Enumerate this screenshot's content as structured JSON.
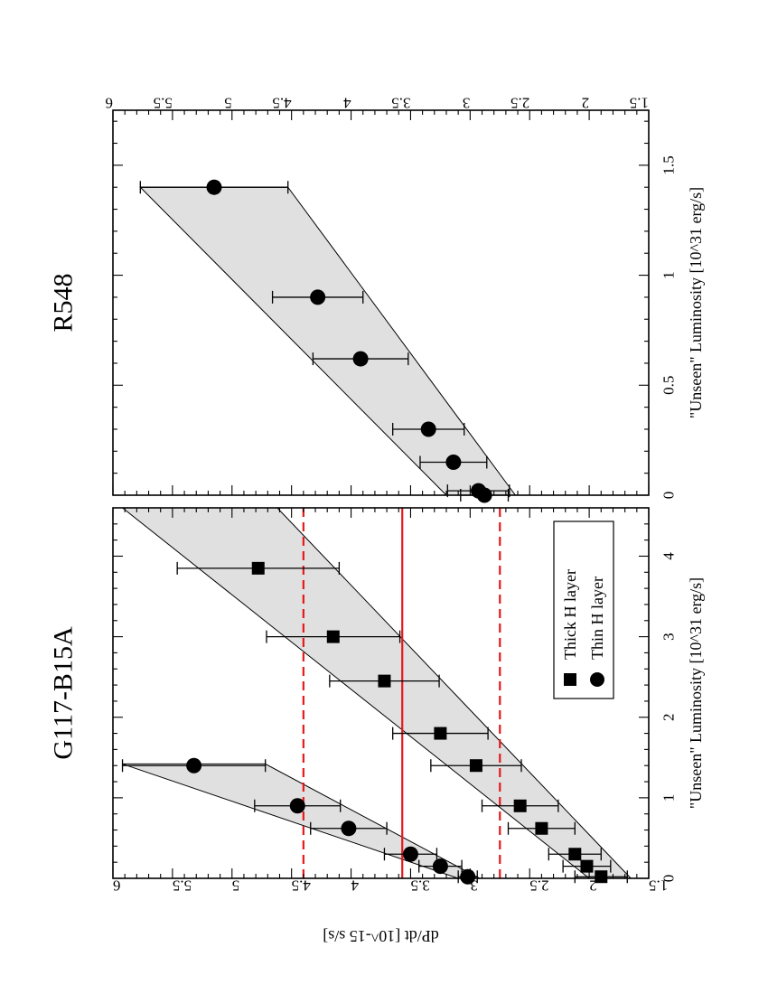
{
  "chart_data": [
    {
      "type": "scatter",
      "title": "G117-B15A",
      "xlabel": "\"Unseen\" Luminosity [10^31 erg/s]",
      "ylabel": "dP/dt [10^-15 s/s]",
      "xlim": [
        0,
        4.6
      ],
      "ylim": [
        1.5,
        6
      ],
      "x_ticks": [
        "0",
        "1",
        "2",
        "3",
        "4"
      ],
      "y_ticks": [
        "1.5",
        "2",
        "2.5",
        "3",
        "3.5",
        "4",
        "4.5",
        "5",
        "5.5",
        "6"
      ],
      "legend": {
        "position": "bottom-right",
        "entries": [
          "Thick H layer",
          "Thin H layer"
        ]
      },
      "series": [
        {
          "name": "Thick H layer",
          "marker": "square",
          "x": [
            0.02,
            0.15,
            0.3,
            0.62,
            0.9,
            1.4,
            1.8,
            2.45,
            3.0,
            3.85
          ],
          "y": [
            1.9,
            2.02,
            2.12,
            2.4,
            2.58,
            2.95,
            3.25,
            3.72,
            4.15,
            4.78
          ],
          "err_low": [
            0.22,
            0.2,
            0.22,
            0.28,
            0.32,
            0.38,
            0.4,
            0.46,
            0.56,
            0.68
          ],
          "err_high": [
            0.22,
            0.2,
            0.22,
            0.28,
            0.32,
            0.38,
            0.4,
            0.46,
            0.56,
            0.68
          ]
        },
        {
          "name": "Thin H layer",
          "marker": "circle",
          "x": [
            0.02,
            0.15,
            0.3,
            0.62,
            0.9,
            1.4
          ],
          "y": [
            3.02,
            3.25,
            3.5,
            4.02,
            4.45,
            5.32
          ],
          "err_low": [
            0.08,
            0.18,
            0.22,
            0.32,
            0.36,
            0.6
          ],
          "err_high": [
            0.08,
            0.18,
            0.22,
            0.32,
            0.36,
            0.6
          ]
        }
      ],
      "bands": [
        {
          "name": "Thick H layer band",
          "x_start": 0,
          "x_end": 4.6,
          "upper": [
            2.0,
            5.92
          ],
          "lower": [
            1.65,
            4.62
          ]
        },
        {
          "name": "Thin H layer band",
          "x_start": 0,
          "x_end": 1.42,
          "upper": [
            3.1,
            5.92
          ],
          "lower": [
            2.92,
            4.72
          ]
        }
      ],
      "reference_lines": [
        {
          "value": 3.57,
          "style": "solid",
          "color": "#e41a1c"
        },
        {
          "value": 4.4,
          "style": "dashed",
          "color": "#e41a1c"
        },
        {
          "value": 2.75,
          "style": "dashed",
          "color": "#e41a1c"
        }
      ]
    },
    {
      "type": "scatter",
      "title": "R548",
      "xlabel": "\"Unseen\" Luminosity [10^31 erg/s]",
      "ylabel": "",
      "xlim": [
        0,
        1.75
      ],
      "ylim": [
        1.5,
        6
      ],
      "x_ticks": [
        "0",
        "0.5",
        "1",
        "1.5"
      ],
      "y_ticks": [
        "1.5",
        "2",
        "2.5",
        "3",
        "3.5",
        "4",
        "4.5",
        "5",
        "5.5",
        "6"
      ],
      "series": [
        {
          "name": "R548",
          "marker": "circle",
          "x": [
            0.0,
            0.02,
            0.15,
            0.3,
            0.62,
            0.9,
            1.4
          ],
          "y": [
            2.88,
            2.93,
            3.14,
            3.35,
            3.92,
            4.28,
            5.15
          ],
          "err_low": [
            0.2,
            0.26,
            0.28,
            0.3,
            0.4,
            0.38,
            0.62
          ],
          "err_high": [
            0.2,
            0.26,
            0.28,
            0.3,
            0.4,
            0.38,
            0.62
          ]
        }
      ],
      "bands": [
        {
          "name": "R548 band",
          "x_start": 0,
          "x_end": 1.4,
          "upper": [
            3.2,
            5.77
          ],
          "lower": [
            2.62,
            4.53
          ]
        }
      ]
    }
  ],
  "legend_colors": {
    "marker": "#000000",
    "band": "#e0e0e0",
    "reference": "#e41a1c"
  }
}
